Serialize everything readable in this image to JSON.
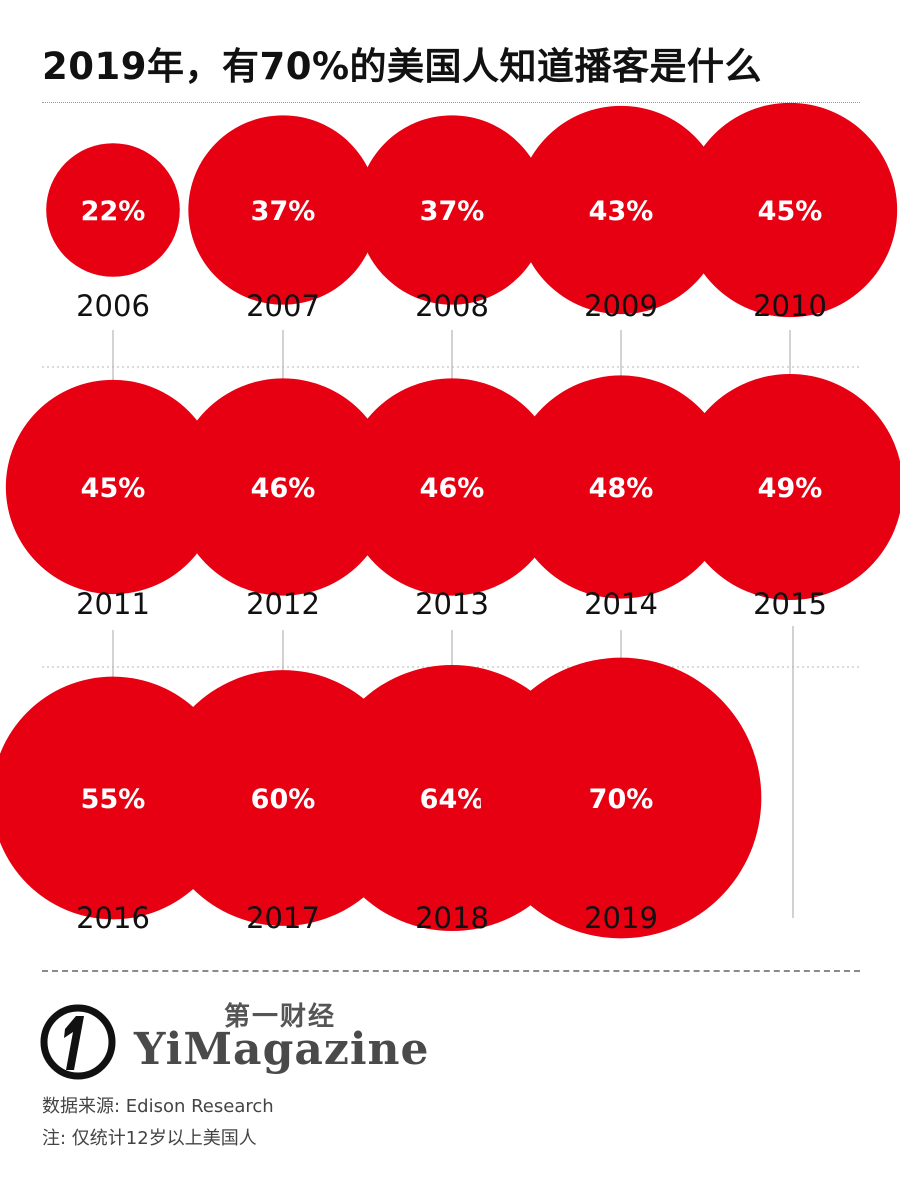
{
  "title": "2019年，有70%的美国人知道播客是什么",
  "chart_data": {
    "type": "bubble",
    "title": "2019年，有70%的美国人知道播客是什么",
    "unit": "%",
    "colors": {
      "bubble": "#e60012",
      "label": "#ffffff",
      "year": "#111111",
      "connector": "#b5b5b5"
    },
    "points": [
      {
        "year": "2006",
        "value": 22,
        "label": "22%"
      },
      {
        "year": "2007",
        "value": 37,
        "label": "37%"
      },
      {
        "year": "2008",
        "value": 37,
        "label": "37%"
      },
      {
        "year": "2009",
        "value": 43,
        "label": "43%"
      },
      {
        "year": "2010",
        "value": 45,
        "label": "45%"
      },
      {
        "year": "2011",
        "value": 45,
        "label": "45%"
      },
      {
        "year": "2012",
        "value": 46,
        "label": "46%"
      },
      {
        "year": "2013",
        "value": 46,
        "label": "46%"
      },
      {
        "year": "2014",
        "value": 48,
        "label": "48%"
      },
      {
        "year": "2015",
        "value": 49,
        "label": "49%"
      },
      {
        "year": "2016",
        "value": 55,
        "label": "55%"
      },
      {
        "year": "2017",
        "value": 60,
        "label": "60%"
      },
      {
        "year": "2018",
        "value": 64,
        "label": "64%"
      },
      {
        "year": "2019",
        "value": 70,
        "label": "70%"
      }
    ]
  },
  "footer": {
    "logo_cn": "第一财经",
    "logo_en": "YiMagazine",
    "source": "数据来源: Edison Research",
    "note": "注: 仅统计12岁以上美国人"
  }
}
